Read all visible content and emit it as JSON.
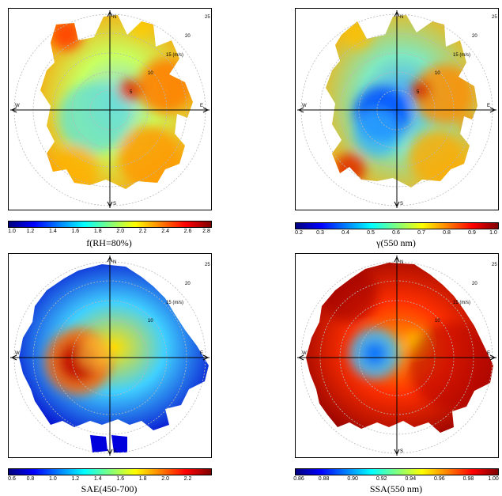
{
  "chart_data": [
    {
      "type": "heatmap",
      "subtype": "polar bivariate plot (wind direction vs wind speed)",
      "title": "",
      "colorbar_label": "f(RH=80%)",
      "colorbar_ticks": [
        "1.0",
        "1.2",
        "1.4",
        "1.6",
        "1.8",
        "2.0",
        "2.2",
        "2.4",
        "2.6",
        "2.8"
      ],
      "crange": [
        1.0,
        2.8
      ],
      "compass": [
        "N",
        "E",
        "S",
        "W"
      ],
      "radial_labels": [
        "5",
        "10",
        "15 (m/s)",
        "20",
        "25"
      ],
      "low_value_area": "center-west",
      "high_value_area": "east and south rim"
    },
    {
      "type": "heatmap",
      "subtype": "polar bivariate plot (wind direction vs wind speed)",
      "title": "",
      "colorbar_label": "γ(550 nm)",
      "colorbar_ticks": [
        "0.2",
        "0.3",
        "0.4",
        "0.5",
        "0.6",
        "0.7",
        "0.8",
        "0.9",
        "1.0"
      ],
      "crange": [
        0.2,
        1.0
      ],
      "compass": [
        "N",
        "E",
        "S",
        "W"
      ],
      "radial_labels": [
        "5",
        "10",
        "15 (m/s)",
        "20",
        "25"
      ],
      "low_value_area": "center",
      "high_value_area": "east and south-west rim"
    },
    {
      "type": "heatmap",
      "subtype": "polar bivariate plot (wind direction vs wind speed)",
      "title": "",
      "colorbar_label": "SAE(450-700)",
      "colorbar_ticks": [
        "0.6",
        "0.8",
        "1.0",
        "1.2",
        "1.4",
        "1.6",
        "1.8",
        "2.0",
        "2.2"
      ],
      "crange": [
        0.6,
        2.4
      ],
      "compass": [
        "N",
        "E",
        "S",
        "W"
      ],
      "radial_labels": [
        "10",
        "15 (m/s)",
        "20",
        "25"
      ],
      "low_value_area": "outer rim",
      "high_value_area": "center-west"
    },
    {
      "type": "heatmap",
      "subtype": "polar bivariate plot (wind direction vs wind speed)",
      "title": "",
      "colorbar_label": "SSA(550 nm)",
      "colorbar_ticks": [
        "0.86",
        "0.88",
        "0.90",
        "0.92",
        "0.94",
        "0.96",
        "0.98",
        "1.00"
      ],
      "crange": [
        0.86,
        1.0
      ],
      "compass": [
        "N",
        "E",
        "S",
        "W"
      ],
      "radial_labels": [
        "10",
        "15 (m/s)",
        "20",
        "25"
      ],
      "low_value_area": "center-west",
      "high_value_area": "outer rim"
    }
  ],
  "colors": {
    "axis": "#000000",
    "ring": "#b8b8b8",
    "colormap": "jet"
  }
}
